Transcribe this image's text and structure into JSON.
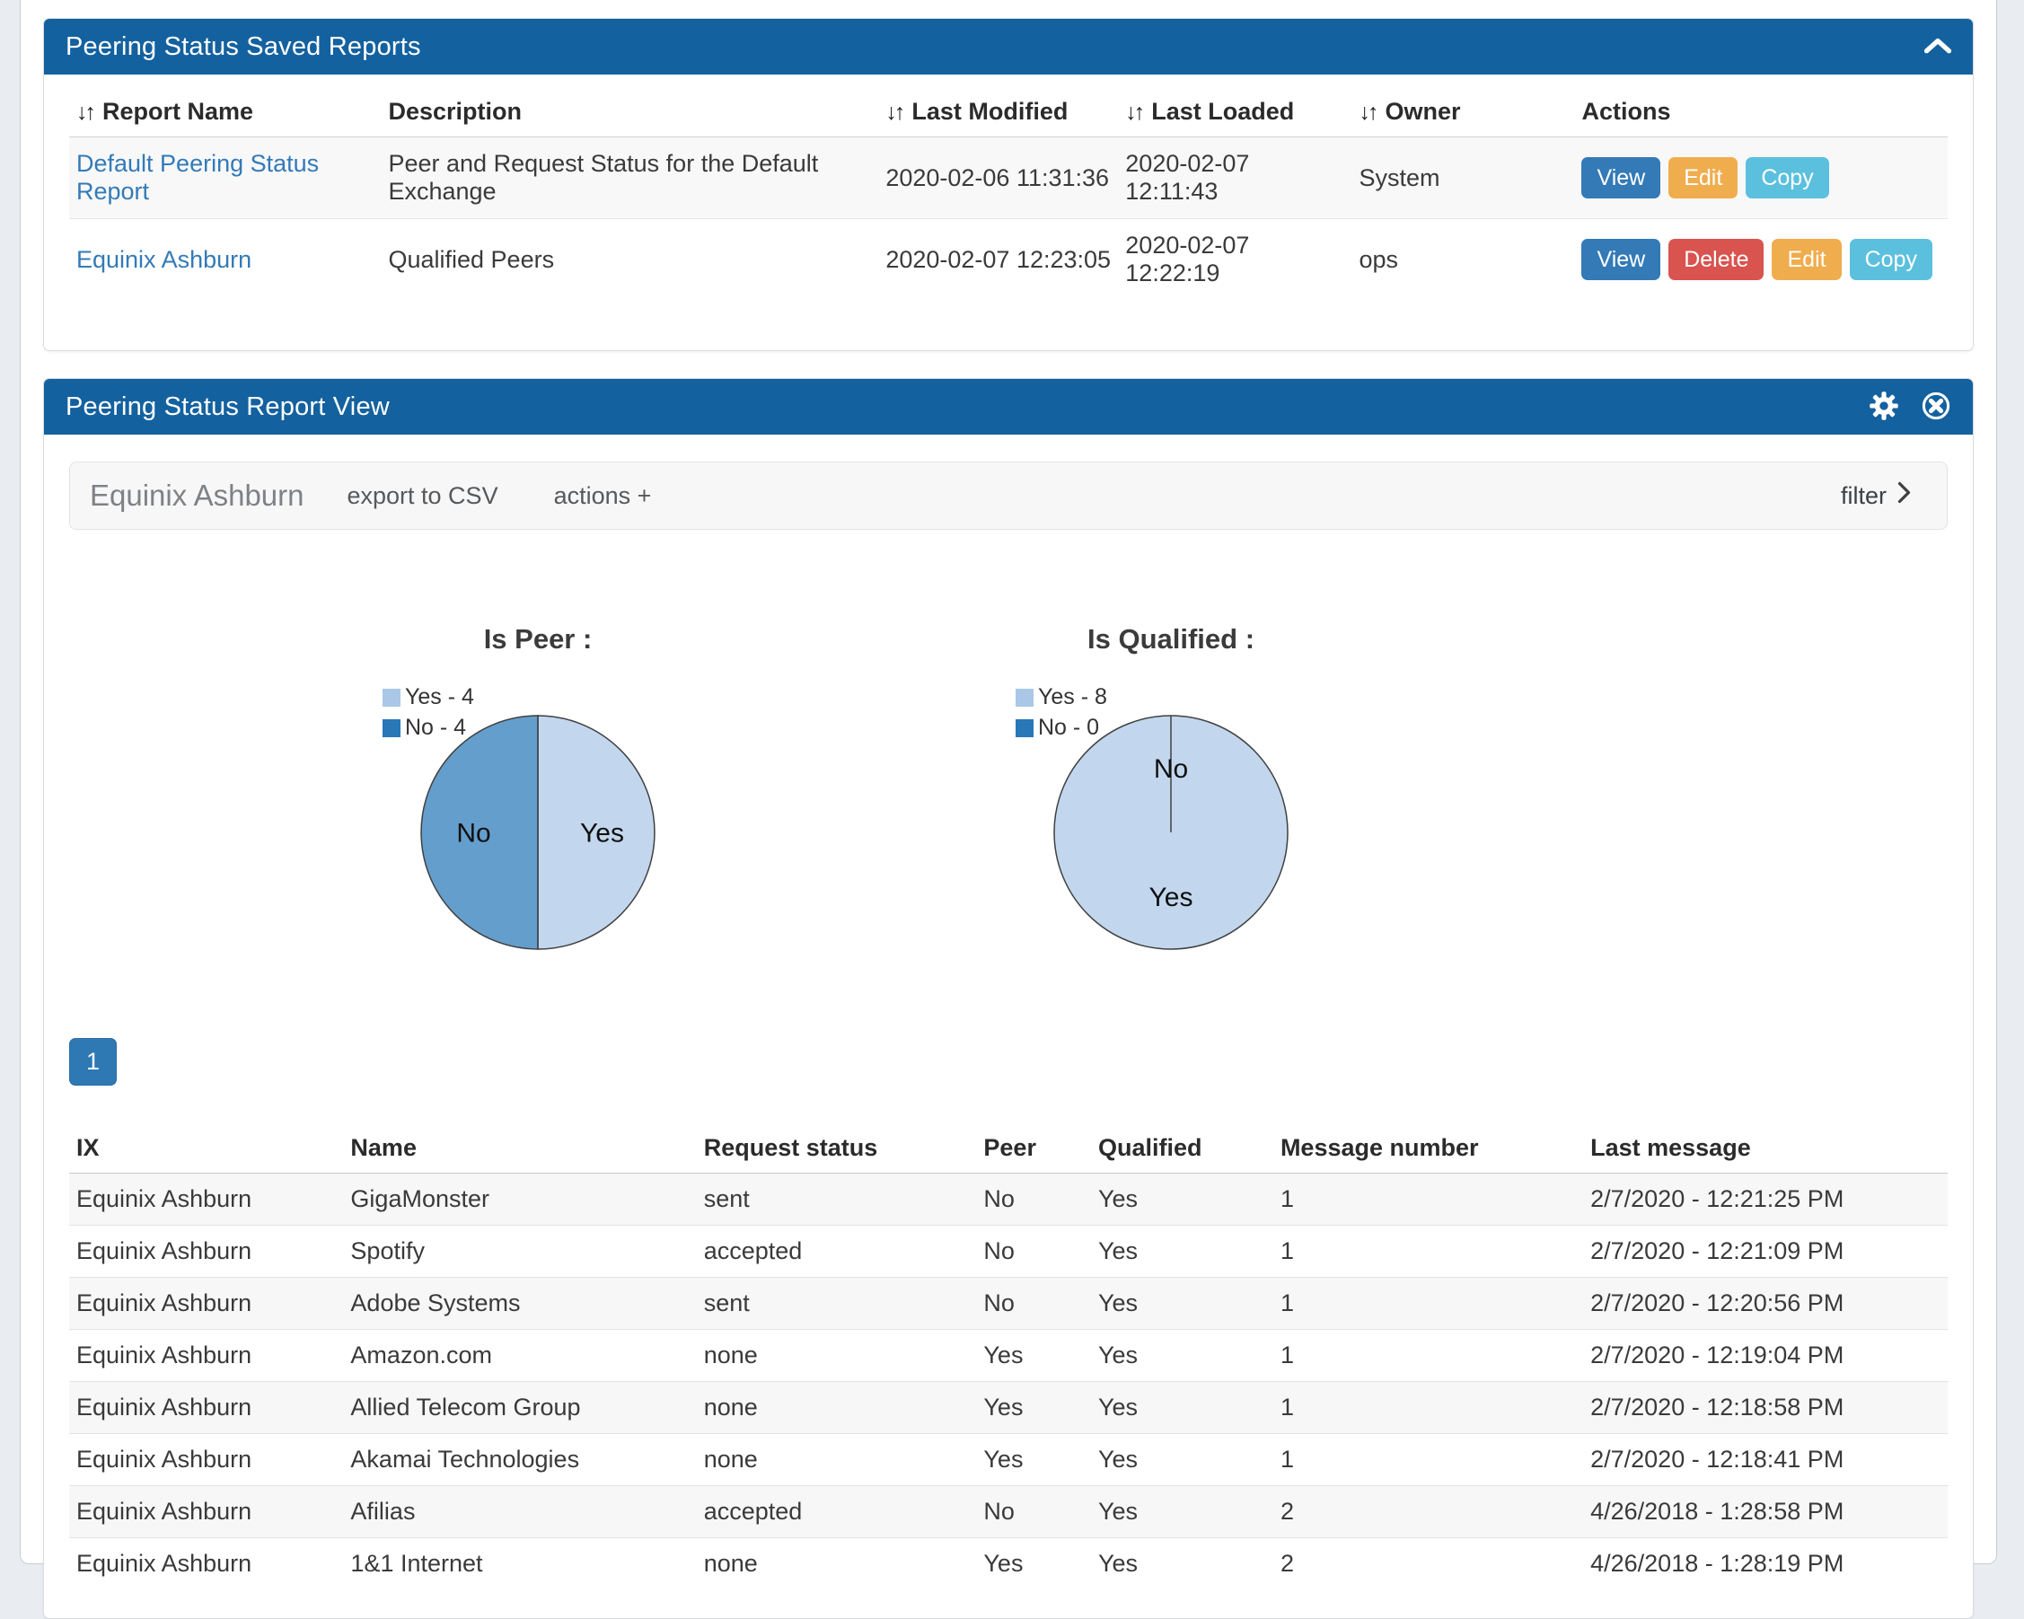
{
  "ui_colors": {
    "panel_header_bg": "#14619f",
    "link_blue": "#337ab7",
    "pagination_active_bg": "#2e78b3",
    "page_background": "#e9edf2",
    "buttons": {
      "View": "#337ab7",
      "Edit": "#f0ad4e",
      "Copy": "#5bc0de",
      "Delete": "#d9534f"
    }
  },
  "icons": {
    "sort_glyph": "↓↑",
    "collapse": "chevron-up-icon",
    "settings": "gear-icon",
    "close": "circle-x-icon",
    "filter": "chevron-right-icon"
  },
  "panel_saved_reports": {
    "title": "Peering Status Saved Reports",
    "table": {
      "columns": [
        {
          "label": "Report Name",
          "sortable": true
        },
        {
          "label": "Description",
          "sortable": false
        },
        {
          "label": "Last Modified",
          "sortable": true
        },
        {
          "label": "Last Loaded",
          "sortable": true
        },
        {
          "label": "Owner",
          "sortable": true
        },
        {
          "label": "Actions",
          "sortable": false
        }
      ],
      "rows": [
        {
          "name": "Default Peering Status Report",
          "description": "Peer and Request Status for the Default Exchange",
          "last_modified": "2020-02-06 11:31:36",
          "last_loaded": "2020-02-07 12:11:43",
          "owner": "System",
          "actions": [
            "View",
            "Edit",
            "Copy"
          ]
        },
        {
          "name": "Equinix Ashburn",
          "description": "Qualified Peers",
          "last_modified": "2020-02-07 12:23:05",
          "last_loaded": "2020-02-07 12:22:19",
          "owner": "ops",
          "actions": [
            "View",
            "Delete",
            "Edit",
            "Copy"
          ]
        }
      ]
    }
  },
  "panel_report_view": {
    "title": "Peering Status Report View",
    "toolbar": {
      "report_name": "Equinix Ashburn",
      "export_label": "export to CSV",
      "actions_label": "actions +",
      "filter_label": "filter"
    },
    "pagination": {
      "current_page": "1"
    },
    "results_table": {
      "columns": [
        "IX",
        "Name",
        "Request status",
        "Peer",
        "Qualified",
        "Message number",
        "Last message"
      ],
      "rows": [
        [
          "Equinix Ashburn",
          "GigaMonster",
          "sent",
          "No",
          "Yes",
          "1",
          "2/7/2020 - 12:21:25 PM"
        ],
        [
          "Equinix Ashburn",
          "Spotify",
          "accepted",
          "No",
          "Yes",
          "1",
          "2/7/2020 - 12:21:09 PM"
        ],
        [
          "Equinix Ashburn",
          "Adobe Systems",
          "sent",
          "No",
          "Yes",
          "1",
          "2/7/2020 - 12:20:56 PM"
        ],
        [
          "Equinix Ashburn",
          "Amazon.com",
          "none",
          "Yes",
          "Yes",
          "1",
          "2/7/2020 - 12:19:04 PM"
        ],
        [
          "Equinix Ashburn",
          "Allied Telecom Group",
          "none",
          "Yes",
          "Yes",
          "1",
          "2/7/2020 - 12:18:58 PM"
        ],
        [
          "Equinix Ashburn",
          "Akamai Technologies",
          "none",
          "Yes",
          "Yes",
          "1",
          "2/7/2020 - 12:18:41 PM"
        ],
        [
          "Equinix Ashburn",
          "Afilias",
          "accepted",
          "No",
          "Yes",
          "2",
          "4/26/2018 - 1:28:58 PM"
        ],
        [
          "Equinix Ashburn",
          "1&1 Internet",
          "none",
          "Yes",
          "Yes",
          "2",
          "4/26/2018 - 1:28:19 PM"
        ]
      ]
    }
  },
  "chart_data": [
    {
      "type": "pie",
      "title": "Is Peer :",
      "labels": [
        "Yes",
        "No"
      ],
      "values": [
        4,
        4
      ],
      "legend": [
        "Yes - 4",
        "No - 4"
      ],
      "colors": [
        "#abc7e8",
        "#2878b8"
      ],
      "legend_position": "top-left"
    },
    {
      "type": "pie",
      "title": "Is Qualified :",
      "labels": [
        "Yes",
        "No"
      ],
      "values": [
        8,
        0
      ],
      "legend": [
        "Yes - 8",
        "No - 0"
      ],
      "colors": [
        "#abc7e8",
        "#2878b8"
      ],
      "legend_position": "top-left"
    }
  ]
}
